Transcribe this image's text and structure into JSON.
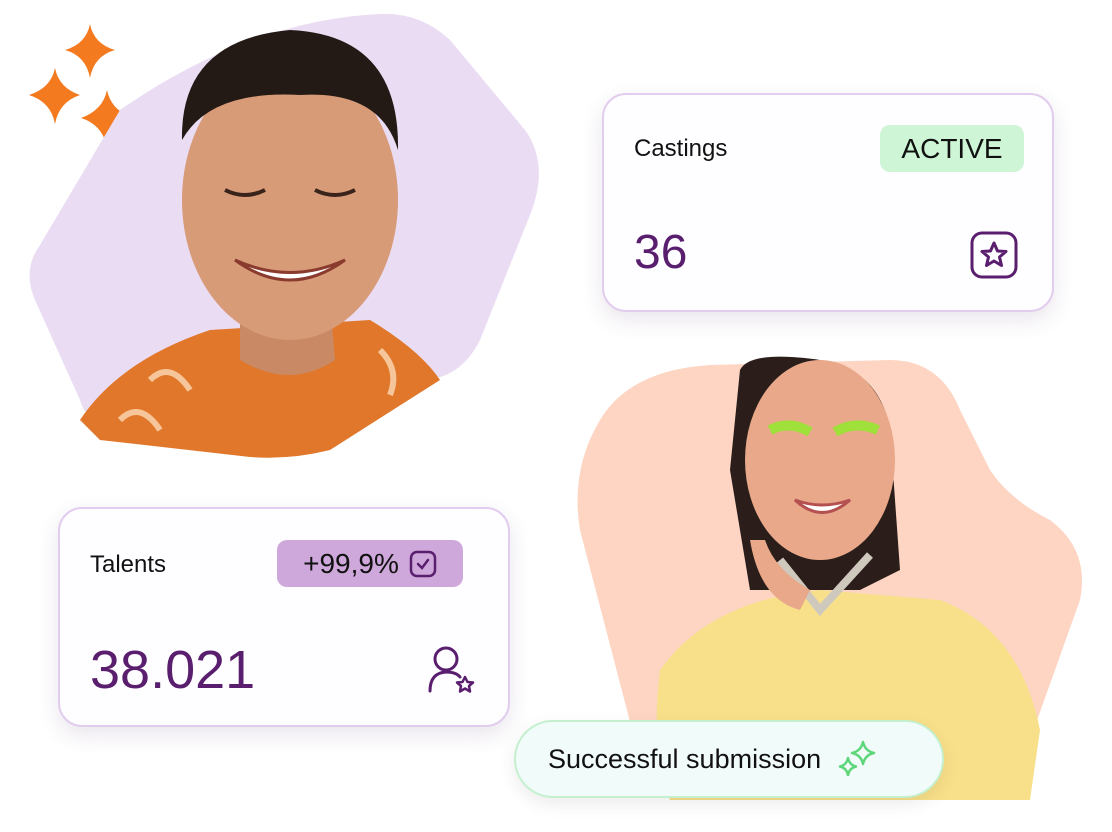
{
  "castings_card": {
    "title": "Castings",
    "badge": "ACTIVE",
    "value": "36",
    "icon": "star-square-icon"
  },
  "talents_card": {
    "title": "Talents",
    "badge": "+99,9%",
    "badge_icon": "check-square-icon",
    "value": "38.021",
    "icon": "user-star-icon"
  },
  "status_pill": {
    "label": "Successful submission",
    "icon": "sparkles-icon"
  },
  "colors": {
    "brand_purple": "#5a1e6e",
    "sparkle_orange": "#f47a20",
    "active_green": "#cdf5d6",
    "badge_purple": "#cea8da",
    "blob_lilac": "#eadcf3",
    "blob_peach": "#fdd5c2",
    "success_green": "#5fd67a"
  }
}
